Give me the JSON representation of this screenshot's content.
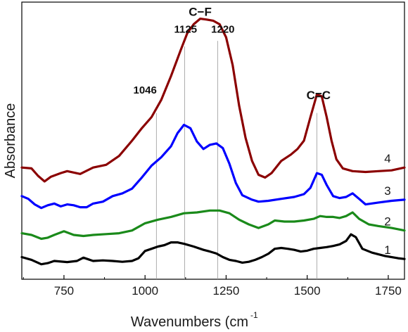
{
  "chart_data": {
    "type": "line",
    "xlabel": "Wavenumbers (cm",
    "xlabel_superscript": "-1",
    "ylabel": "Absorbance",
    "xlim": [
      620,
      1800
    ],
    "ylim": [
      0,
      100
    ],
    "xticks": [
      750,
      1000,
      1250,
      1500,
      1750
    ],
    "xtick_labels": [
      "750",
      "1000",
      "1250",
      "1500",
      "1750"
    ],
    "grid": false,
    "legend": "none",
    "annotations": {
      "groups": [
        {
          "label": "C−F",
          "x": 1170,
          "y": 95
        },
        {
          "label": "C=C",
          "x": 1535,
          "y": 65
        }
      ],
      "peaks": [
        {
          "label": "1125",
          "x": 1125,
          "y": 89
        },
        {
          "label": "1220",
          "x": 1240,
          "y": 89
        },
        {
          "label": "1046",
          "x": 1000,
          "y": 67
        }
      ],
      "reference_lines": [
        {
          "x": 1035,
          "y_top": 60
        },
        {
          "x": 1122,
          "y_top": 84
        },
        {
          "x": 1224,
          "y_top": 86
        },
        {
          "x": 1530,
          "y_top": 60
        }
      ]
    },
    "series": [
      {
        "label": "1",
        "color": "#000000",
        "points": [
          [
            620,
            8.0
          ],
          [
            650,
            7.0
          ],
          [
            680,
            5.4
          ],
          [
            700,
            5.8
          ],
          [
            720,
            6.6
          ],
          [
            760,
            6.2
          ],
          [
            790,
            6.6
          ],
          [
            810,
            7.8
          ],
          [
            840,
            6.6
          ],
          [
            870,
            6.8
          ],
          [
            900,
            6.6
          ],
          [
            930,
            6.3
          ],
          [
            960,
            6.6
          ],
          [
            980,
            7.6
          ],
          [
            1000,
            10.2
          ],
          [
            1020,
            11.0
          ],
          [
            1040,
            11.8
          ],
          [
            1060,
            12.3
          ],
          [
            1080,
            13.3
          ],
          [
            1100,
            13.3
          ],
          [
            1120,
            12.8
          ],
          [
            1150,
            11.8
          ],
          [
            1180,
            10.6
          ],
          [
            1200,
            10.0
          ],
          [
            1220,
            9.3
          ],
          [
            1240,
            8.0
          ],
          [
            1260,
            7.0
          ],
          [
            1280,
            6.6
          ],
          [
            1300,
            6.0
          ],
          [
            1320,
            6.3
          ],
          [
            1340,
            7.0
          ],
          [
            1360,
            8.0
          ],
          [
            1380,
            9.2
          ],
          [
            1400,
            11.0
          ],
          [
            1420,
            11.3
          ],
          [
            1440,
            11.0
          ],
          [
            1460,
            10.6
          ],
          [
            1480,
            10.0
          ],
          [
            1500,
            10.3
          ],
          [
            1520,
            11.0
          ],
          [
            1540,
            11.3
          ],
          [
            1560,
            11.6
          ],
          [
            1580,
            12.0
          ],
          [
            1600,
            12.6
          ],
          [
            1620,
            13.8
          ],
          [
            1635,
            16.2
          ],
          [
            1650,
            15.2
          ],
          [
            1670,
            11.0
          ],
          [
            1700,
            9.6
          ],
          [
            1740,
            8.4
          ],
          [
            1780,
            7.6
          ],
          [
            1800,
            7.3
          ]
        ]
      },
      {
        "label": "2",
        "color": "#1a8a1a",
        "points": [
          [
            620,
            16.6
          ],
          [
            650,
            16.0
          ],
          [
            680,
            14.6
          ],
          [
            700,
            15.0
          ],
          [
            720,
            16.0
          ],
          [
            750,
            17.3
          ],
          [
            780,
            16.0
          ],
          [
            810,
            15.6
          ],
          [
            840,
            16.0
          ],
          [
            880,
            16.3
          ],
          [
            920,
            16.6
          ],
          [
            960,
            17.6
          ],
          [
            1000,
            20.2
          ],
          [
            1040,
            21.5
          ],
          [
            1080,
            22.5
          ],
          [
            1120,
            23.8
          ],
          [
            1160,
            24.1
          ],
          [
            1200,
            24.8
          ],
          [
            1230,
            24.8
          ],
          [
            1260,
            23.8
          ],
          [
            1290,
            21.5
          ],
          [
            1320,
            19.8
          ],
          [
            1350,
            18.5
          ],
          [
            1380,
            19.8
          ],
          [
            1400,
            21.2
          ],
          [
            1430,
            20.8
          ],
          [
            1460,
            20.8
          ],
          [
            1490,
            21.2
          ],
          [
            1520,
            21.8
          ],
          [
            1540,
            22.8
          ],
          [
            1560,
            22.5
          ],
          [
            1580,
            22.5
          ],
          [
            1600,
            22.1
          ],
          [
            1620,
            22.8
          ],
          [
            1640,
            24.1
          ],
          [
            1660,
            21.8
          ],
          [
            1690,
            19.8
          ],
          [
            1720,
            19.2
          ],
          [
            1760,
            18.5
          ],
          [
            1800,
            17.6
          ]
        ]
      },
      {
        "label": "3",
        "color": "#0000ff",
        "points": [
          [
            620,
            30.0
          ],
          [
            640,
            29.0
          ],
          [
            660,
            27.0
          ],
          [
            680,
            25.7
          ],
          [
            700,
            26.7
          ],
          [
            720,
            27.3
          ],
          [
            740,
            26.3
          ],
          [
            760,
            27.0
          ],
          [
            780,
            26.7
          ],
          [
            800,
            26.0
          ],
          [
            820,
            26.0
          ],
          [
            840,
            27.3
          ],
          [
            870,
            28.0
          ],
          [
            900,
            30.0
          ],
          [
            930,
            31.0
          ],
          [
            960,
            32.7
          ],
          [
            990,
            36.7
          ],
          [
            1020,
            41.0
          ],
          [
            1050,
            44.0
          ],
          [
            1080,
            48.0
          ],
          [
            1100,
            52.7
          ],
          [
            1120,
            55.7
          ],
          [
            1140,
            54.5
          ],
          [
            1160,
            49.7
          ],
          [
            1180,
            47.0
          ],
          [
            1200,
            48.5
          ],
          [
            1220,
            49.0
          ],
          [
            1240,
            47.3
          ],
          [
            1260,
            41.7
          ],
          [
            1280,
            34.7
          ],
          [
            1300,
            30.3
          ],
          [
            1330,
            28.7
          ],
          [
            1350,
            28.0
          ],
          [
            1380,
            28.3
          ],
          [
            1420,
            29.0
          ],
          [
            1460,
            29.7
          ],
          [
            1490,
            30.7
          ],
          [
            1510,
            33.0
          ],
          [
            1530,
            38.3
          ],
          [
            1545,
            37.7
          ],
          [
            1560,
            34.0
          ],
          [
            1580,
            30.0
          ],
          [
            1600,
            29.3
          ],
          [
            1620,
            29.7
          ],
          [
            1640,
            31.0
          ],
          [
            1660,
            29.0
          ],
          [
            1680,
            27.0
          ],
          [
            1720,
            27.7
          ],
          [
            1760,
            28.3
          ],
          [
            1800,
            28.7
          ]
        ]
      },
      {
        "label": "4",
        "color": "#8b0000",
        "points": [
          [
            620,
            40.3
          ],
          [
            650,
            40.0
          ],
          [
            670,
            37.3
          ],
          [
            690,
            35.3
          ],
          [
            710,
            37.0
          ],
          [
            740,
            38.3
          ],
          [
            760,
            39.0
          ],
          [
            800,
            38.0
          ],
          [
            840,
            40.3
          ],
          [
            880,
            41.3
          ],
          [
            920,
            44.5
          ],
          [
            960,
            50.0
          ],
          [
            990,
            54.5
          ],
          [
            1020,
            58.5
          ],
          [
            1050,
            64.7
          ],
          [
            1080,
            73.3
          ],
          [
            1110,
            82.7
          ],
          [
            1130,
            88.7
          ],
          [
            1150,
            92.0
          ],
          [
            1170,
            94.0
          ],
          [
            1190,
            93.7
          ],
          [
            1210,
            93.3
          ],
          [
            1230,
            92.0
          ],
          [
            1250,
            87.3
          ],
          [
            1270,
            77.3
          ],
          [
            1290,
            62.7
          ],
          [
            1310,
            51.0
          ],
          [
            1330,
            42.7
          ],
          [
            1350,
            37.7
          ],
          [
            1370,
            36.7
          ],
          [
            1390,
            38.3
          ],
          [
            1420,
            42.7
          ],
          [
            1450,
            45.0
          ],
          [
            1470,
            47.0
          ],
          [
            1490,
            50.0
          ],
          [
            1510,
            58.5
          ],
          [
            1530,
            66.7
          ],
          [
            1545,
            66.0
          ],
          [
            1560,
            58.5
          ],
          [
            1575,
            50.0
          ],
          [
            1590,
            43.3
          ],
          [
            1610,
            40.0
          ],
          [
            1640,
            39.0
          ],
          [
            1680,
            38.7
          ],
          [
            1720,
            39.0
          ],
          [
            1760,
            39.3
          ],
          [
            1800,
            40.3
          ]
        ]
      }
    ]
  }
}
